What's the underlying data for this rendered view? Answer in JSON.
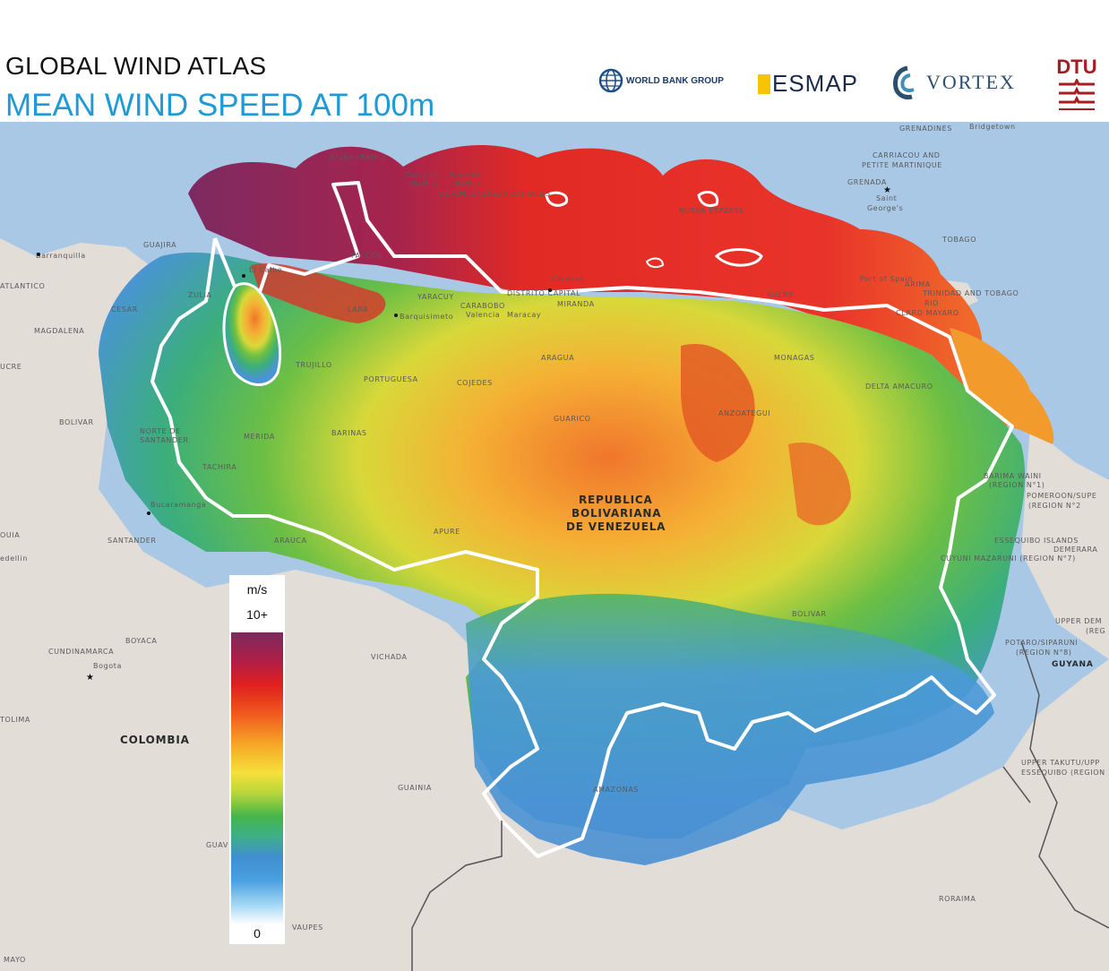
{
  "header": {
    "title": "GLOBAL WIND ATLAS",
    "subtitle": "MEAN WIND SPEED AT 100m"
  },
  "logos": {
    "world_bank": "WORLD BANK GROUP",
    "esmap": "ESMAP",
    "vortex": "VORTEX",
    "dtu": "DTU"
  },
  "legend": {
    "unit": "m/s",
    "max_label": "10+",
    "min_label": "0"
  },
  "map_labels": {
    "venezuela": [
      "REPUBLICA",
      "BOLIVARIANA",
      "DE VENEZUELA"
    ],
    "colombia": "COLOMBIA",
    "guyana": "GUYANA",
    "trinidad": "TRINIDAD AND TOBAGO",
    "bridgetown": "Bridgetown",
    "grenada": "GRENADA",
    "saint_georges": [
      "Saint",
      "George's"
    ],
    "grenadines": "GRENADINES",
    "carriacou": [
      "CARRIACOU AND",
      "PETITE MARTINIQUE"
    ],
    "tobago": "TOBAGO",
    "aruba": "Aruba (Neth.)",
    "curacao": [
      "Curaçao",
      "(Neth.)"
    ],
    "bonaire": [
      "Bonaire",
      "(Neth.)"
    ],
    "dependencias": "DEPENDENCIAS FEDERALES",
    "nueva_esparta": "NUEVA ESPARTA",
    "guajira": "GUAJIRA",
    "barranquilla": "Barranquilla",
    "atlantico": "ATLANTICO",
    "cesar": "CESAR",
    "magdalena": "MAGDALENA",
    "bolivar_col": "BOLIVAR",
    "ucre": "UCRE",
    "zulia": "ZULIA",
    "falcon": "FALCON",
    "el_caibo": "El Caibo",
    "lara": "LARA",
    "yaracuy": "YARACUY",
    "carabobo": "CARABOBO",
    "distrito_capital": "DISTRITO CAPITAL",
    "miranda": "MIRANDA",
    "sucre": "SUCRE",
    "barquisimeto": "Barquisimeto",
    "valencia": "Valencia",
    "maracay": "Maracay",
    "caracas": "Caracas",
    "trujillo": "TRUJILLO",
    "portuguesa": "PORTUGUESA",
    "cojedes": "COJEDES",
    "aragua": "ARAGUA",
    "monagas": "MONAGAS",
    "delta_amacuro": "DELTA AMACURO",
    "anzoategui": "ANZOATEGUI",
    "guarico": "GUARICO",
    "barinas": "BARINAS",
    "merida": "MERIDA",
    "tachira": "TACHIRA",
    "norte_santander": [
      "NORTE DE",
      "SANTANDER"
    ],
    "bucaramanga": "Bucaramanga",
    "santander": "SANTANDER",
    "arauca": "ARAUCA",
    "apure": "APURE",
    "bolivar": "BOLIVAR",
    "amazonas": "AMAZONAS",
    "vichada": "VICHADA",
    "guainia": "GUAINIA",
    "guaviare": "GUAV",
    "vaupes": "VAUPES",
    "boyaca": "BOYACA",
    "cundinamarca": "CUNDINAMARCA",
    "bogota": "Bogota",
    "tolima": "TOLIMA",
    "yopal": "YAC",
    "antioquia": "OUIA",
    "medellin": "edellin",
    "puerto_spain": "Port of Spain",
    "arima": "ARIMA",
    "rio_claro": [
      "RIO",
      "CLARO MAYARO"
    ],
    "barima_waini": [
      "BARIMA WAINI",
      "(REGION N°1)"
    ],
    "pomeroon": [
      "POMEROON/SUPE",
      "(REGION N°2"
    ],
    "cuyuni": "CUYUNI MAZARUNI (REGION N°7)",
    "essequibo_islands": "ESSEQUIBO ISLANDS",
    "demerara": "DEMERARA",
    "upper_demerara": [
      "UPPER DEM",
      "(REG"
    ],
    "potaro": [
      "POTARO/SIPARUNI",
      "(REGION N°8)"
    ],
    "upper_takutu": [
      "UPPER TAKUTU/UPP",
      "ESSEQUIBO (REGION"
    ],
    "roraima": "RORAIMA",
    "mayo": "MAYO"
  },
  "colors": {
    "sea": "#a9c8e6",
    "land": "#e3ddd8",
    "title_blue": "#1e9ad6",
    "border": "#ffffff"
  }
}
